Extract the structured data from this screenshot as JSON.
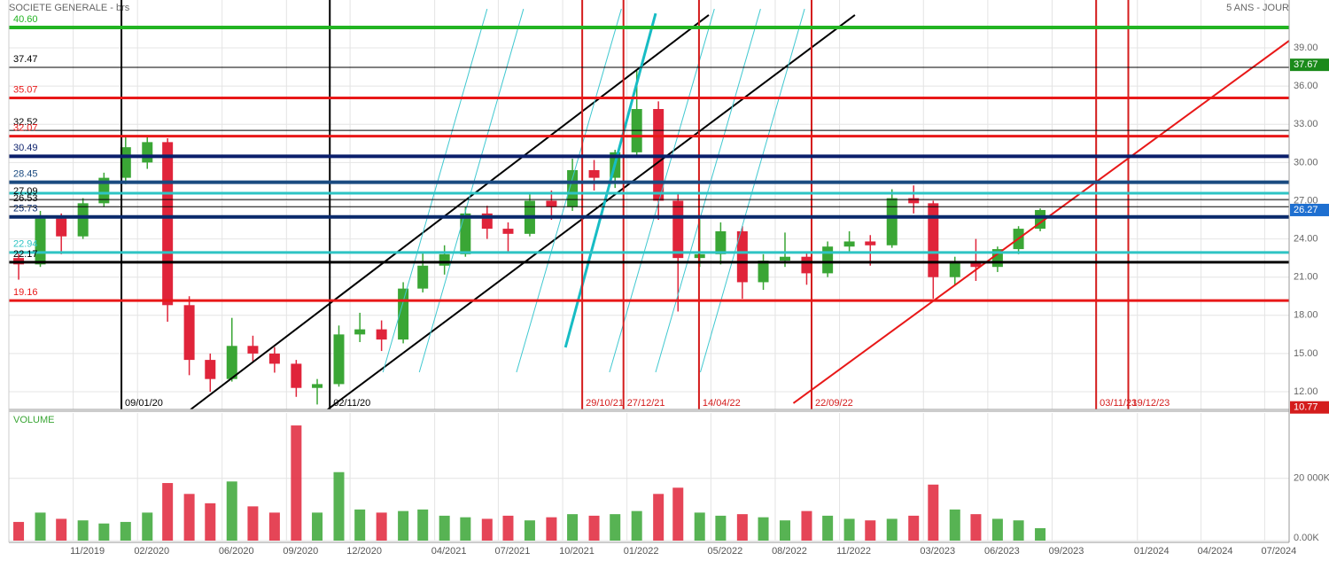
{
  "chart_data": [
    {
      "type": "candlestick",
      "title": "SOCIETE GENERALE - brs",
      "subtitle": "5 ANS - JOUR",
      "x": [
        "15/08/19",
        "15/09/19",
        "15/10/19",
        "15/11/19",
        "15/12/19",
        "15/01/20",
        "15/02/20",
        "15/03/20",
        "15/04/20",
        "15/05/20",
        "15/06/20",
        "15/07/20",
        "15/08/20",
        "15/09/20",
        "15/10/20",
        "15/11/20",
        "15/12/20",
        "15/01/21",
        "15/02/21",
        "15/03/21",
        "15/04/21",
        "15/05/21",
        "15/06/21",
        "15/07/21",
        "15/08/21",
        "15/09/21",
        "15/10/21",
        "15/11/21",
        "15/12/21",
        "15/01/22",
        "15/02/22",
        "15/03/22",
        "15/04/22",
        "15/05/22",
        "15/06/22",
        "15/07/22",
        "15/08/22",
        "15/09/22",
        "15/10/22",
        "15/11/22",
        "15/12/22",
        "15/01/23",
        "15/02/23",
        "15/03/23",
        "15/04/23",
        "15/05/23",
        "15/06/23",
        "15/07/23",
        "15/08/23"
      ],
      "open": [
        22.5,
        22.0,
        25.6,
        24.2,
        26.8,
        28.8,
        30.0,
        31.6,
        18.8,
        14.5,
        13.0,
        15.6,
        15.0,
        14.2,
        12.3,
        12.6,
        16.5,
        16.9,
        16.1,
        20.1,
        21.9,
        22.8,
        26.0,
        24.8,
        24.4,
        27.0,
        26.5,
        29.4,
        28.8,
        30.8,
        34.2,
        27.0,
        22.5,
        22.8,
        24.6,
        20.6,
        22.3,
        22.6,
        21.3,
        23.4,
        23.8,
        23.5,
        27.2,
        26.8,
        21.0,
        22.1,
        21.8,
        23.2,
        24.8
      ],
      "high": [
        23.0,
        26.2,
        26.0,
        27.2,
        29.2,
        32.0,
        32.0,
        31.9,
        19.5,
        15.0,
        17.8,
        16.4,
        15.5,
        14.5,
        13.0,
        17.2,
        18.2,
        17.6,
        20.6,
        22.9,
        23.5,
        26.5,
        26.6,
        25.3,
        27.5,
        27.8,
        30.3,
        30.2,
        31.0,
        37.2,
        34.8,
        27.5,
        25.8,
        25.3,
        25.0,
        22.8,
        24.5,
        23.0,
        23.8,
        24.6,
        24.3,
        27.9,
        28.2,
        27.0,
        22.6,
        24.0,
        23.4,
        25.0,
        26.4
      ],
      "low": [
        20.8,
        21.8,
        22.8,
        24.0,
        26.5,
        28.3,
        29.5,
        17.5,
        13.3,
        12.0,
        12.8,
        14.4,
        13.5,
        11.6,
        11.0,
        12.4,
        15.9,
        15.2,
        15.8,
        19.8,
        21.2,
        22.6,
        24.0,
        22.9,
        24.2,
        25.5,
        26.2,
        27.8,
        28.0,
        30.5,
        25.5,
        18.3,
        21.8,
        22.0,
        19.3,
        20.0,
        21.8,
        20.4,
        21.0,
        22.9,
        21.9,
        23.3,
        26.0,
        19.3,
        20.4,
        20.7,
        21.4,
        22.8,
        24.6
      ],
      "close": [
        22.0,
        25.6,
        24.2,
        26.8,
        28.8,
        31.2,
        31.6,
        18.8,
        14.5,
        13.0,
        15.6,
        15.0,
        14.2,
        12.3,
        12.6,
        16.5,
        16.9,
        16.1,
        20.1,
        21.9,
        22.8,
        26.0,
        24.8,
        24.4,
        27.0,
        26.5,
        29.4,
        28.8,
        30.8,
        34.2,
        27.0,
        22.5,
        22.8,
        24.6,
        20.6,
        22.3,
        22.6,
        21.3,
        23.4,
        23.8,
        23.5,
        27.2,
        26.8,
        21.0,
        22.1,
        21.8,
        23.2,
        24.8,
        26.27
      ],
      "up_color": "#3aa635",
      "down_color": "#e0243a",
      "xlim": [
        "01/08/19",
        "05/08/24"
      ],
      "ylim": [
        10.61,
        42.76
      ],
      "yticks": [
        {
          "value": 12,
          "label": "12.00"
        },
        {
          "value": 15,
          "label": "15.00"
        },
        {
          "value": 18,
          "label": "18.00"
        },
        {
          "value": 21,
          "label": "21.00"
        },
        {
          "value": 24,
          "label": "24.00"
        },
        {
          "value": 27,
          "label": "27.00"
        },
        {
          "value": 30,
          "label": "30.00"
        },
        {
          "value": 33,
          "label": "33.00"
        },
        {
          "value": 36,
          "label": "36.00"
        },
        {
          "value": 39,
          "label": "39.00"
        }
      ],
      "grid": true,
      "hlines": [
        {
          "value": 40.6,
          "label": "40.60",
          "color": "#22b422",
          "width": 4
        },
        {
          "value": 37.47,
          "label": "37.47",
          "color": "#000000",
          "width": 1
        },
        {
          "value": 35.07,
          "label": "35.07",
          "color": "#e81818",
          "width": 3
        },
        {
          "value": 32.52,
          "label": "32.52",
          "color": "#000000",
          "width": 1
        },
        {
          "value": 32.07,
          "label": "32.07",
          "color": "#e81818",
          "width": 3
        },
        {
          "value": 30.49,
          "label": "30.49",
          "color": "#0a1f6b",
          "width": 4
        },
        {
          "value": 28.45,
          "label": "28.45",
          "color": "#1a4a80",
          "width": 4
        },
        {
          "value": 27.59,
          "color": "#2ec4c4",
          "width": 3
        },
        {
          "value": 27.09,
          "label": "27.09",
          "color": "#000000",
          "width": 1
        },
        {
          "value": 26.53,
          "label": "26.53",
          "color": "#000000",
          "width": 1
        },
        {
          "value": 25.73,
          "label": "25.73",
          "color": "#0a2a6b",
          "width": 4
        },
        {
          "value": 22.94,
          "label": "22.94",
          "color": "#2ec4c4",
          "width": 3
        },
        {
          "value": 22.17,
          "label": "22.17",
          "color": "#000000",
          "width": 3
        },
        {
          "value": 19.16,
          "label": "19.16",
          "color": "#e81818",
          "width": 3
        }
      ],
      "vlines": [
        {
          "x": "09/01/20",
          "color": "#000000"
        },
        {
          "x": "02/11/20",
          "color": "#000000"
        },
        {
          "x": "29/10/21",
          "color": "#d41c1c"
        },
        {
          "x": "27/12/21",
          "color": "#d41c1c"
        },
        {
          "x": "14/04/22",
          "color": "#d41c1c"
        },
        {
          "x": "22/09/22",
          "color": "#d41c1c"
        },
        {
          "x": "03/11/23",
          "color": "#d41c1c"
        },
        {
          "x": "19/12/23",
          "color": "#d41c1c"
        }
      ],
      "trendlines": [
        {
          "from": [
            "27/08/22",
            11.1
          ],
          "to": [
            "05/08/24",
            39.56
          ],
          "color": "#e81818",
          "width": 2
        },
        {
          "from": [
            "17/04/20",
            10.61
          ],
          "to": [
            "28/04/22",
            41.58
          ],
          "color": "#000000",
          "width": 2
        },
        {
          "from": [
            "30/10/20",
            10.61
          ],
          "to": [
            "23/11/22",
            41.58
          ],
          "color": "#000000",
          "width": 2
        },
        {
          "from": [
            "05/10/21",
            15.48
          ],
          "to": [
            "11/02/22",
            41.71
          ],
          "color": "#17bcc4",
          "width": 3
        },
        {
          "from": [
            "17/01/21",
            13.53
          ],
          "to": [
            "15/06/21",
            42.06
          ],
          "color": "#40c8d0",
          "width": 1
        },
        {
          "from": [
            "10/03/21",
            13.53
          ],
          "to": [
            "06/08/21",
            42.06
          ],
          "color": "#40c8d0",
          "width": 1
        },
        {
          "from": [
            "27/07/21",
            13.53
          ],
          "to": [
            "24/12/21",
            42.06
          ],
          "color": "#40c8d0",
          "width": 1
        },
        {
          "from": [
            "07/12/21",
            13.53
          ],
          "to": [
            "06/05/22",
            42.06
          ],
          "color": "#40c8d0",
          "width": 1
        },
        {
          "from": [
            "11/02/22",
            13.53
          ],
          "to": [
            "11/07/22",
            42.06
          ],
          "color": "#40c8d0",
          "width": 1
        },
        {
          "from": [
            "16/04/22",
            13.53
          ],
          "to": [
            "12/09/22",
            42.06
          ],
          "color": "#40c8d0",
          "width": 1
        }
      ],
      "markers": [
        {
          "value": 37.67,
          "color": "#1a8a1a"
        },
        {
          "value": 26.27,
          "color": "#1e6fd0"
        },
        {
          "value": 10.77,
          "color": "#d41c1c"
        }
      ]
    },
    {
      "type": "bar",
      "title": "VOLUME",
      "x": [
        "15/08/19",
        "15/09/19",
        "15/10/19",
        "15/11/19",
        "15/12/19",
        "15/01/20",
        "15/02/20",
        "15/03/20",
        "15/04/20",
        "15/05/20",
        "15/06/20",
        "15/07/20",
        "15/08/20",
        "15/09/20",
        "15/10/20",
        "15/11/20",
        "15/12/20",
        "15/01/21",
        "15/02/21",
        "15/03/21",
        "15/04/21",
        "15/05/21",
        "15/06/21",
        "15/07/21",
        "15/08/21",
        "15/09/21",
        "15/10/21",
        "15/11/21",
        "15/12/21",
        "15/01/22",
        "15/02/22",
        "15/03/22",
        "15/04/22",
        "15/05/22",
        "15/06/22",
        "15/07/22",
        "15/08/22",
        "15/09/22",
        "15/10/22",
        "15/11/22",
        "15/12/22",
        "15/01/23",
        "15/02/23",
        "15/03/23",
        "15/04/23",
        "15/05/23",
        "15/06/23",
        "15/07/23",
        "15/08/23"
      ],
      "values": [
        6000,
        9000,
        7000,
        6500,
        5500,
        6000,
        9000,
        18500,
        15000,
        12000,
        19000,
        11000,
        9000,
        37000,
        9000,
        22000,
        10000,
        9000,
        9500,
        10000,
        8000,
        7500,
        7000,
        8000,
        6500,
        7500,
        8500,
        8000,
        8500,
        9500,
        15000,
        17000,
        9000,
        8000,
        8500,
        7500,
        6500,
        9500,
        8000,
        7000,
        6500,
        7000,
        8000,
        18000,
        10000,
        8500,
        7000,
        6500,
        4000
      ],
      "xlim": [
        "01/08/19",
        "05/08/24"
      ],
      "ylim": [
        0,
        41000
      ],
      "yticks": [
        {
          "value": 0,
          "label": "0.00K"
        },
        {
          "value": 20000,
          "label": "20 000K"
        }
      ],
      "xticks": [
        {
          "value": "01/11/19",
          "label": "11/2019"
        },
        {
          "value": "01/02/20",
          "label": "02/2020"
        },
        {
          "value": "01/06/20",
          "label": "06/2020"
        },
        {
          "value": "01/09/20",
          "label": "09/2020"
        },
        {
          "value": "01/12/20",
          "label": "12/2020"
        },
        {
          "value": "01/04/21",
          "label": "04/2021"
        },
        {
          "value": "01/07/21",
          "label": "07/2021"
        },
        {
          "value": "01/10/21",
          "label": "10/2021"
        },
        {
          "value": "01/01/22",
          "label": "01/2022"
        },
        {
          "value": "01/05/22",
          "label": "05/2022"
        },
        {
          "value": "01/08/22",
          "label": "08/2022"
        },
        {
          "value": "01/11/22",
          "label": "11/2022"
        },
        {
          "value": "01/03/23",
          "label": "03/2023"
        },
        {
          "value": "01/06/23",
          "label": "06/2023"
        },
        {
          "value": "01/09/23",
          "label": "09/2023"
        },
        {
          "value": "01/01/24",
          "label": "01/2024"
        },
        {
          "value": "01/04/24",
          "label": "04/2024"
        },
        {
          "value": "01/07/24",
          "label": "07/2024"
        }
      ],
      "grid": true
    }
  ]
}
